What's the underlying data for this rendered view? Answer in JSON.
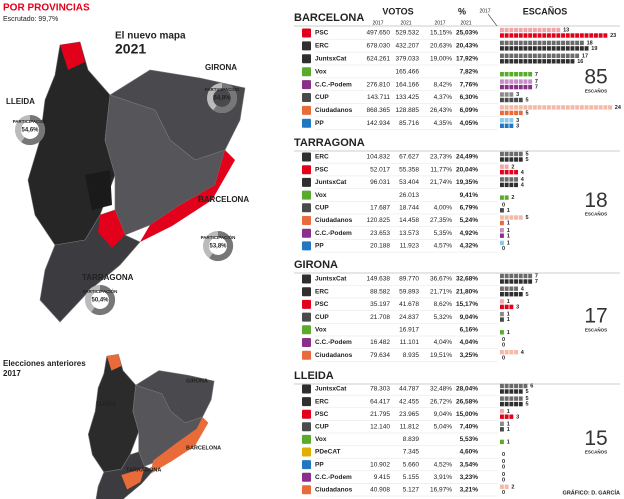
{
  "header": {
    "title": "POR PROVINCIAS",
    "subtitle": "Escrutado: 99,7%"
  },
  "map_new": {
    "title": "El nuevo mapa",
    "year": "2021",
    "participation_label": "PARTICIPACIÓN",
    "provinces": [
      {
        "name": "GIRONA",
        "participation": "54,8%"
      },
      {
        "name": "LLEIDA",
        "participation": "54,6%"
      },
      {
        "name": "BARCELONA",
        "participation": "53,8%"
      },
      {
        "name": "TARRAGONA",
        "participation": "50,4%"
      }
    ]
  },
  "map_prev": {
    "title": "Elecciones anteriores",
    "year": "2017",
    "provinces": [
      "GIRONA",
      "LLEIDA",
      "BARCELONA",
      "TARRAGONA"
    ]
  },
  "table": {
    "votes_label": "VOTOS",
    "pct_label": "%",
    "seats_label": "ESCAÑOS",
    "year_2017": "2017",
    "year_2021": "2021",
    "regions": [
      {
        "name": "BARCELONA",
        "seats_total": "85",
        "seats_total_label": "ESCAÑOS",
        "rows": [
          {
            "party": "PSC",
            "votes_2017": "497.650",
            "votes_2021": "529.532",
            "pct_2017": "15,15%",
            "pct_2021": "25,03%",
            "seats_2017": 13,
            "seats_2021": 23,
            "color_2017": "#f2a7a7",
            "color_2021": "#e2001a"
          },
          {
            "party": "ERC",
            "votes_2017": "678.030",
            "votes_2021": "432.207",
            "pct_2017": "20,63%",
            "pct_2021": "20,43%",
            "seats_2017": 18,
            "seats_2021": 19,
            "color_2017": "#6b6b6b",
            "color_2021": "#2f2f2f"
          },
          {
            "party": "JuntsxCat",
            "votes_2017": "624.261",
            "votes_2021": "379.033",
            "pct_2017": "19,00%",
            "pct_2021": "17,92%",
            "seats_2017": 17,
            "seats_2021": 16,
            "color_2017": "#6b6b6b",
            "color_2021": "#2f2f2f"
          },
          {
            "party": "Vox",
            "votes_2017": null,
            "votes_2021": "165.466",
            "pct_2017": null,
            "pct_2021": "7,82%",
            "seats_2017": null,
            "seats_2021": 7,
            "color_2017": "#9fd37a",
            "color_2021": "#5aaa2c"
          },
          {
            "party": "C.C.-Podem",
            "votes_2017": "276.810",
            "votes_2021": "164.166",
            "pct_2017": "8,42%",
            "pct_2021": "7,76%",
            "seats_2017": 7,
            "seats_2021": 7,
            "color_2017": "#c78cc7",
            "color_2021": "#8a2f8a"
          },
          {
            "party": "CUP",
            "votes_2017": "143.711",
            "votes_2021": "133.425",
            "pct_2017": "4,37%",
            "pct_2021": "6,30%",
            "seats_2017": 3,
            "seats_2021": 5,
            "color_2017": "#8a8a8a",
            "color_2021": "#4a4a4a"
          },
          {
            "party": "Ciudadanos",
            "votes_2017": "868.365",
            "votes_2021": "128.885",
            "pct_2017": "26,43%",
            "pct_2021": "6,09%",
            "seats_2017": 24,
            "seats_2021": 5,
            "color_2017": "#f6b9a6",
            "color_2021": "#ea6b3a"
          },
          {
            "party": "PP",
            "votes_2017": "142.934",
            "votes_2021": "85.716",
            "pct_2017": "4,35%",
            "pct_2021": "4,05%",
            "seats_2017": 3,
            "seats_2021": 3,
            "color_2017": "#8cc8ea",
            "color_2021": "#1f78c1"
          }
        ]
      },
      {
        "name": "TARRAGONA",
        "seats_total": "18",
        "seats_total_label": "ESCAÑOS",
        "rows": [
          {
            "party": "ERC",
            "votes_2017": "104.832",
            "votes_2021": "67.627",
            "pct_2017": "23,73%",
            "pct_2021": "24,49%",
            "seats_2017": 5,
            "seats_2021": 5,
            "color_2017": "#6b6b6b",
            "color_2021": "#2f2f2f"
          },
          {
            "party": "PSC",
            "votes_2017": "52.017",
            "votes_2021": "55.358",
            "pct_2017": "11,77%",
            "pct_2021": "20,04%",
            "seats_2017": 2,
            "seats_2021": 4,
            "color_2017": "#f2a7a7",
            "color_2021": "#e2001a"
          },
          {
            "party": "JuntsxCat",
            "votes_2017": "96.031",
            "votes_2021": "53.404",
            "pct_2017": "21,74%",
            "pct_2021": "19,35%",
            "seats_2017": 4,
            "seats_2021": 4,
            "color_2017": "#6b6b6b",
            "color_2021": "#2f2f2f"
          },
          {
            "party": "Vox",
            "votes_2017": null,
            "votes_2021": "26.013",
            "pct_2017": null,
            "pct_2021": "9,41%",
            "seats_2017": null,
            "seats_2021": 2,
            "color_2017": "#9fd37a",
            "color_2021": "#5aaa2c"
          },
          {
            "party": "CUP",
            "votes_2017": "17.687",
            "votes_2021": "18.744",
            "pct_2017": "4,00%",
            "pct_2021": "6,79%",
            "seats_2017": 0,
            "seats_2021": 1,
            "color_2017": "#8a8a8a",
            "color_2021": "#4a4a4a"
          },
          {
            "party": "Ciudadanos",
            "votes_2017": "120.825",
            "votes_2021": "14.458",
            "pct_2017": "27,35%",
            "pct_2021": "5,24%",
            "seats_2017": 5,
            "seats_2021": 1,
            "color_2017": "#f6b9a6",
            "color_2021": "#ea6b3a"
          },
          {
            "party": "C.C.-Podem",
            "votes_2017": "23.653",
            "votes_2021": "13.573",
            "pct_2017": "5,35%",
            "pct_2021": "4,92%",
            "seats_2017": 1,
            "seats_2021": 1,
            "color_2017": "#c78cc7",
            "color_2021": "#8a2f8a"
          },
          {
            "party": "PP",
            "votes_2017": "20.188",
            "votes_2021": "11.923",
            "pct_2017": "4,57%",
            "pct_2021": "4,32%",
            "seats_2017": 1,
            "seats_2021": 0,
            "color_2017": "#8cc8ea",
            "color_2021": "#1f78c1"
          }
        ]
      },
      {
        "name": "GIRONA",
        "seats_total": "17",
        "seats_total_label": "ESCAÑOS",
        "rows": [
          {
            "party": "JuntsxCat",
            "votes_2017": "149.638",
            "votes_2021": "89.770",
            "pct_2017": "36,67%",
            "pct_2021": "32,68%",
            "seats_2017": 7,
            "seats_2021": 7,
            "color_2017": "#6b6b6b",
            "color_2021": "#2f2f2f"
          },
          {
            "party": "ERC",
            "votes_2017": "88.582",
            "votes_2021": "59.893",
            "pct_2017": "21,71%",
            "pct_2021": "21,80%",
            "seats_2017": 4,
            "seats_2021": 5,
            "color_2017": "#6b6b6b",
            "color_2021": "#2f2f2f"
          },
          {
            "party": "PSC",
            "votes_2017": "35.197",
            "votes_2021": "41.678",
            "pct_2017": "8,62%",
            "pct_2021": "15,17%",
            "seats_2017": 1,
            "seats_2021": 3,
            "color_2017": "#f2a7a7",
            "color_2021": "#e2001a"
          },
          {
            "party": "CUP",
            "votes_2017": "21.708",
            "votes_2021": "24.837",
            "pct_2017": "5,32%",
            "pct_2021": "9,04%",
            "seats_2017": 1,
            "seats_2021": 1,
            "color_2017": "#8a8a8a",
            "color_2021": "#4a4a4a"
          },
          {
            "party": "Vox",
            "votes_2017": null,
            "votes_2021": "16.917",
            "pct_2017": null,
            "pct_2021": "6,16%",
            "seats_2017": null,
            "seats_2021": 1,
            "color_2017": "#9fd37a",
            "color_2021": "#5aaa2c"
          },
          {
            "party": "C.C.-Podem",
            "votes_2017": "16.482",
            "votes_2021": "11.101",
            "pct_2017": "4,04%",
            "pct_2021": "4,04%",
            "seats_2017": 0,
            "seats_2021": 0,
            "color_2017": "#c78cc7",
            "color_2021": "#8a2f8a"
          },
          {
            "party": "Ciudadanos",
            "votes_2017": "79.634",
            "votes_2021": "8.935",
            "pct_2017": "19,51%",
            "pct_2021": "3,25%",
            "seats_2017": 4,
            "seats_2021": 0,
            "color_2017": "#f6b9a6",
            "color_2021": "#ea6b3a"
          }
        ]
      },
      {
        "name": "LLEIDA",
        "seats_total": "15",
        "seats_total_label": "ESCAÑOS",
        "rows": [
          {
            "party": "JuntsxCat",
            "votes_2017": "78.303",
            "votes_2021": "44.787",
            "pct_2017": "32,48%",
            "pct_2021": "28,04%",
            "seats_2017": 6,
            "seats_2021": 5,
            "color_2017": "#6b6b6b",
            "color_2021": "#2f2f2f"
          },
          {
            "party": "ERC",
            "votes_2017": "64.417",
            "votes_2021": "42.455",
            "pct_2017": "26,72%",
            "pct_2021": "26,58%",
            "seats_2017": 5,
            "seats_2021": 5,
            "color_2017": "#6b6b6b",
            "color_2021": "#2f2f2f"
          },
          {
            "party": "PSC",
            "votes_2017": "21.795",
            "votes_2021": "23.965",
            "pct_2017": "9,04%",
            "pct_2021": "15,00%",
            "seats_2017": 1,
            "seats_2021": 3,
            "color_2017": "#f2a7a7",
            "color_2021": "#e2001a"
          },
          {
            "party": "CUP",
            "votes_2017": "12.140",
            "votes_2021": "11.812",
            "pct_2017": "5,04%",
            "pct_2021": "7,40%",
            "seats_2017": 1,
            "seats_2021": 1,
            "color_2017": "#8a8a8a",
            "color_2021": "#4a4a4a"
          },
          {
            "party": "Vox",
            "votes_2017": null,
            "votes_2021": "8.839",
            "pct_2017": null,
            "pct_2021": "5,53%",
            "seats_2017": null,
            "seats_2021": 1,
            "color_2017": "#9fd37a",
            "color_2021": "#5aaa2c"
          },
          {
            "party": "PDeCAT",
            "votes_2017": null,
            "votes_2021": "7.345",
            "pct_2017": null,
            "pct_2021": "4,60%",
            "seats_2017": null,
            "seats_2021": 0,
            "color_2017": "#f3d36b",
            "color_2021": "#e0b000"
          },
          {
            "party": "PP",
            "votes_2017": "10.902",
            "votes_2021": "5.660",
            "pct_2017": "4,52%",
            "pct_2021": "3,54%",
            "seats_2017": 0,
            "seats_2021": 0,
            "color_2017": "#8cc8ea",
            "color_2021": "#1f78c1"
          },
          {
            "party": "C.C.-Podem",
            "votes_2017": "9.415",
            "votes_2021": "5.155",
            "pct_2017": "3,91%",
            "pct_2021": "3,23%",
            "seats_2017": 0,
            "seats_2021": 0,
            "color_2017": "#c78cc7",
            "color_2021": "#8a2f8a"
          },
          {
            "party": "Ciudadanos",
            "votes_2017": "40.908",
            "votes_2021": "5.127",
            "pct_2017": "16,97%",
            "pct_2021": "3,21%",
            "seats_2017": 2,
            "seats_2021": 0,
            "color_2017": "#f6b9a6",
            "color_2021": "#ea6b3a"
          }
        ]
      }
    ]
  },
  "footer": {
    "credit": "GRÁFICO: D. GARCÍA"
  }
}
